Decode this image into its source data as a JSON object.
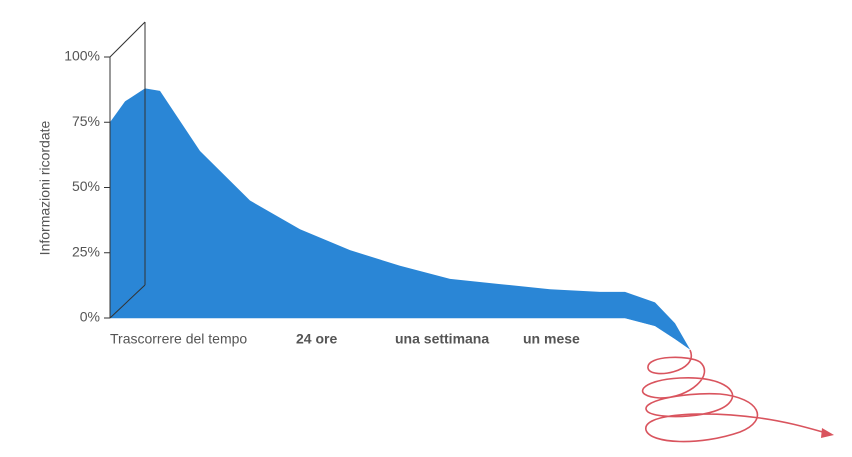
{
  "chart_data": {
    "type": "area",
    "y_label": "Informazioni ricordate",
    "x_labels": [
      "Trascorrere del tempo",
      "24 ore",
      "una settimana",
      "un mese"
    ],
    "x": [
      0,
      15,
      35,
      50,
      90,
      140,
      190,
      240,
      290,
      340,
      390,
      440,
      490,
      515,
      545,
      565,
      580
    ],
    "values": [
      75,
      83,
      88,
      87,
      64,
      45,
      34,
      26,
      20,
      15,
      13,
      11,
      10,
      10,
      6,
      -2,
      -12
    ],
    "lower": [
      0,
      0,
      0,
      0,
      0,
      0,
      0,
      0,
      0,
      0,
      0,
      0,
      0,
      0,
      -3,
      -8,
      -12
    ],
    "color": "#2a86d6",
    "xlim": [
      0,
      580
    ],
    "ylim": [
      0,
      100
    ],
    "yticks": [
      {
        "value": 0,
        "label": "0%"
      },
      {
        "value": 25,
        "label": "25%"
      },
      {
        "value": 50,
        "label": "50%"
      },
      {
        "value": 75,
        "label": "75%"
      },
      {
        "value": 100,
        "label": "100%"
      }
    ]
  }
}
